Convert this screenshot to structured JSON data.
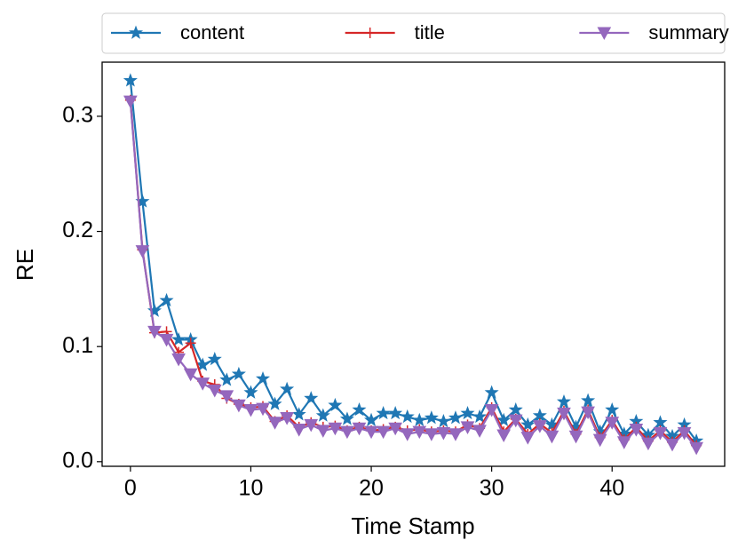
{
  "chart_data": {
    "type": "line",
    "xlabel": "Time Stamp",
    "ylabel": "RE",
    "x": [
      0,
      1,
      2,
      3,
      4,
      5,
      6,
      7,
      8,
      9,
      10,
      11,
      12,
      13,
      14,
      15,
      16,
      17,
      18,
      19,
      20,
      21,
      22,
      23,
      24,
      25,
      26,
      27,
      28,
      29,
      30,
      31,
      32,
      33,
      34,
      35,
      36,
      37,
      38,
      39,
      40,
      41,
      42,
      43,
      44,
      45,
      46,
      47
    ],
    "series": [
      {
        "name": "content",
        "color": "#1f77b4",
        "marker": "star",
        "values": [
          0.331,
          0.226,
          0.131,
          0.14,
          0.106,
          0.106,
          0.084,
          0.089,
          0.071,
          0.076,
          0.06,
          0.072,
          0.05,
          0.063,
          0.041,
          0.055,
          0.04,
          0.049,
          0.037,
          0.045,
          0.036,
          0.042,
          0.042,
          0.039,
          0.036,
          0.038,
          0.035,
          0.038,
          0.042,
          0.039,
          0.06,
          0.036,
          0.045,
          0.032,
          0.04,
          0.032,
          0.052,
          0.03,
          0.053,
          0.026,
          0.045,
          0.024,
          0.035,
          0.023,
          0.034,
          0.022,
          0.032,
          0.018
        ]
      },
      {
        "name": "title",
        "color": "#d62728",
        "marker": "plus",
        "values": [
          0.314,
          0.184,
          0.112,
          0.113,
          0.095,
          0.103,
          0.07,
          0.067,
          0.055,
          0.05,
          0.047,
          0.048,
          0.035,
          0.04,
          0.03,
          0.034,
          0.03,
          0.031,
          0.027,
          0.03,
          0.027,
          0.028,
          0.03,
          0.027,
          0.028,
          0.026,
          0.027,
          0.026,
          0.032,
          0.029,
          0.047,
          0.026,
          0.037,
          0.024,
          0.033,
          0.025,
          0.044,
          0.024,
          0.045,
          0.021,
          0.036,
          0.019,
          0.03,
          0.018,
          0.027,
          0.017,
          0.027,
          0.014
        ]
      },
      {
        "name": "summary",
        "color": "#9467bd",
        "marker": "triangle-down",
        "values": [
          0.313,
          0.183,
          0.113,
          0.106,
          0.089,
          0.076,
          0.068,
          0.062,
          0.057,
          0.049,
          0.045,
          0.046,
          0.034,
          0.038,
          0.028,
          0.032,
          0.027,
          0.029,
          0.026,
          0.029,
          0.026,
          0.026,
          0.029,
          0.024,
          0.026,
          0.024,
          0.025,
          0.024,
          0.03,
          0.027,
          0.045,
          0.023,
          0.036,
          0.021,
          0.031,
          0.022,
          0.042,
          0.022,
          0.043,
          0.019,
          0.034,
          0.017,
          0.028,
          0.016,
          0.025,
          0.015,
          0.025,
          0.012
        ]
      }
    ],
    "xlim": [
      -2.35,
      49.35
    ],
    "xticks": [
      0,
      10,
      20,
      30,
      40
    ],
    "ylim": [
      -0.004,
      0.347
    ],
    "yticks": [
      {
        "value": 0,
        "label": "0.0"
      },
      0.1,
      0.2,
      0.3
    ],
    "legend": "top",
    "grid": false
  }
}
